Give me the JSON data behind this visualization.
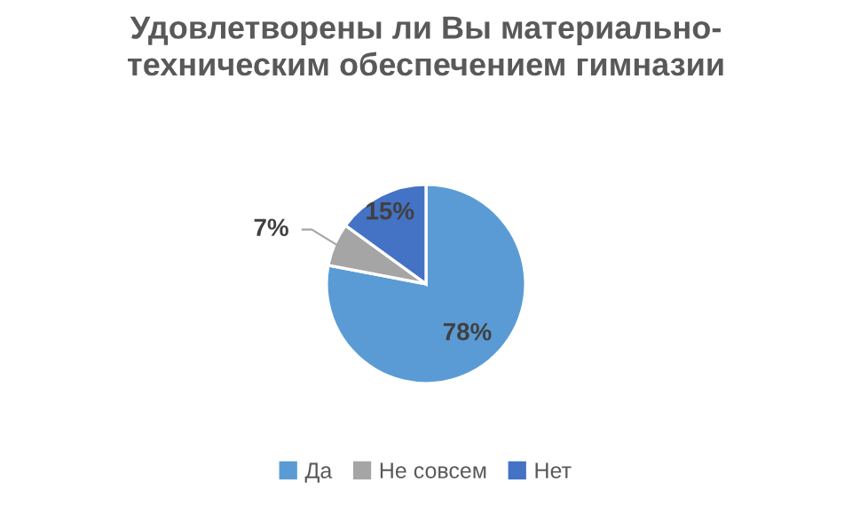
{
  "chart_data": {
    "type": "pie",
    "title": "Удовлетворены ли Вы материально-\nтехническим обеспечением гимназии",
    "categories": [
      "Да",
      "Не совсем",
      "Нет"
    ],
    "values": [
      78,
      7,
      15
    ],
    "colors": [
      "#5b9bd5",
      "#a5a5a5",
      "#4472c4"
    ],
    "value_labels": [
      "78%",
      "7%",
      "15%"
    ],
    "legend": "bottom"
  }
}
